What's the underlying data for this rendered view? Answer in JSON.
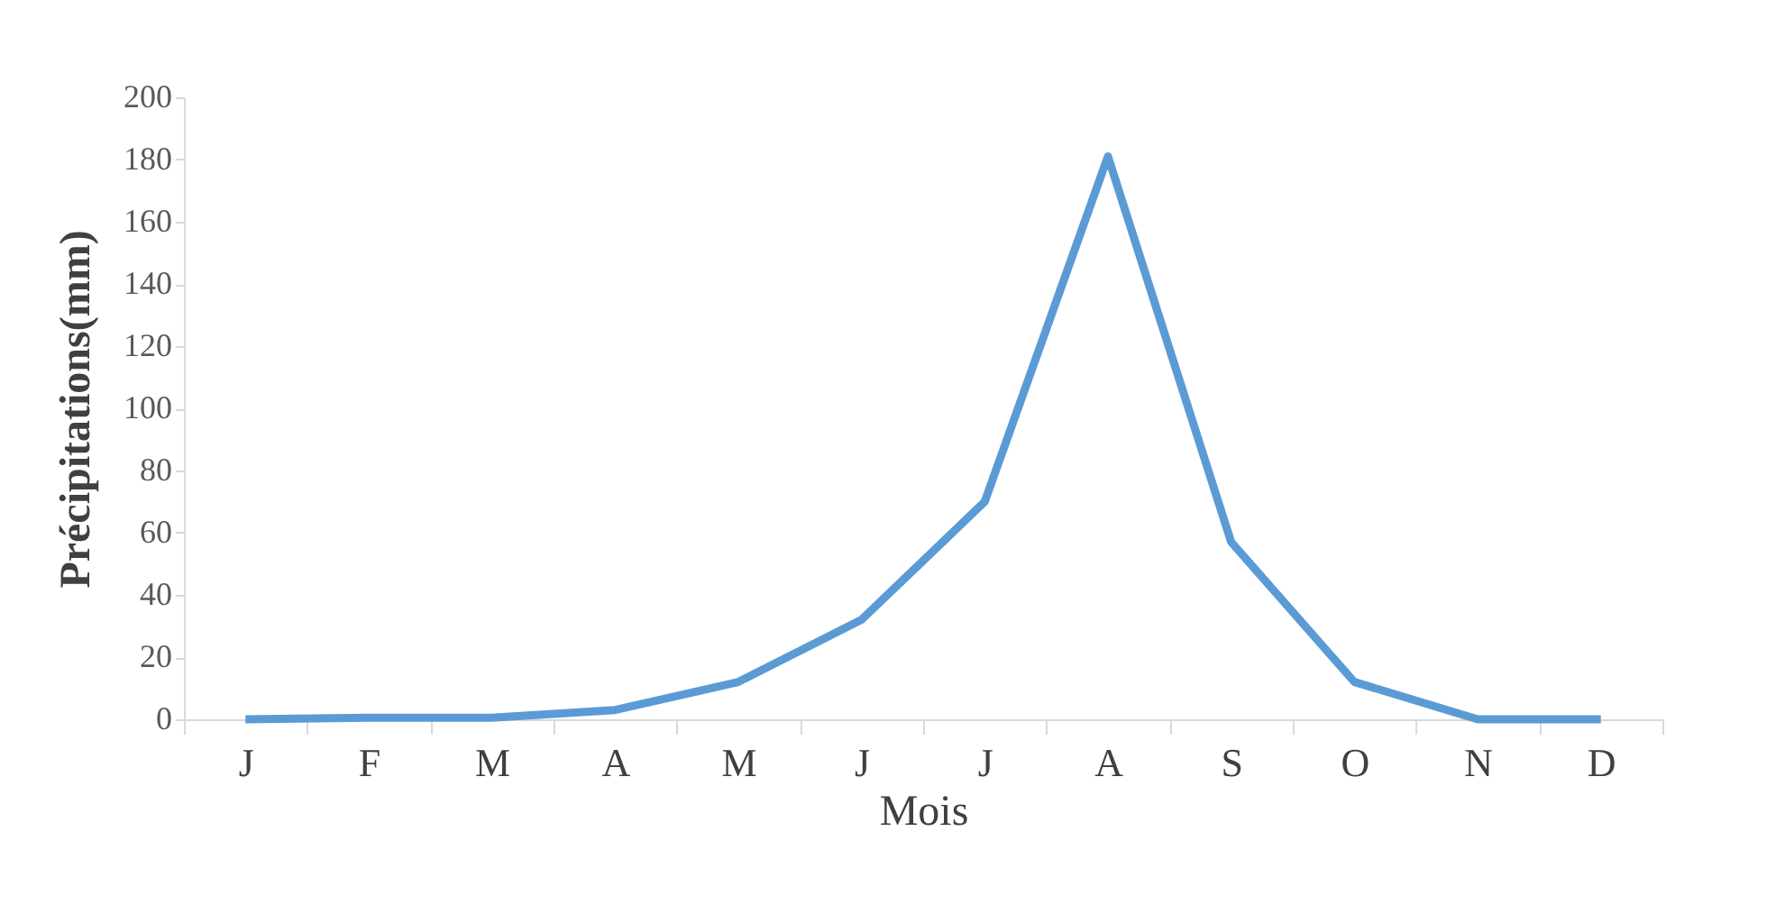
{
  "chart_data": {
    "type": "line",
    "xlabel": "Mois",
    "ylabel": "Précipitations(mm)",
    "categories": [
      "J",
      "F",
      "M",
      "A",
      "M",
      "J",
      "J",
      "A",
      "S",
      "O",
      "N",
      "D"
    ],
    "series": [
      {
        "color": "#5b9bd5",
        "values": [
          0,
          0.5,
          0.5,
          3,
          12,
          32,
          70,
          181,
          57,
          12,
          0,
          0
        ]
      }
    ],
    "ylim": [
      0,
      200
    ],
    "yticks": [
      0,
      20,
      40,
      60,
      80,
      100,
      120,
      140,
      160,
      180,
      200
    ],
    "grid": false,
    "marker": "none",
    "line_style": "solid"
  }
}
